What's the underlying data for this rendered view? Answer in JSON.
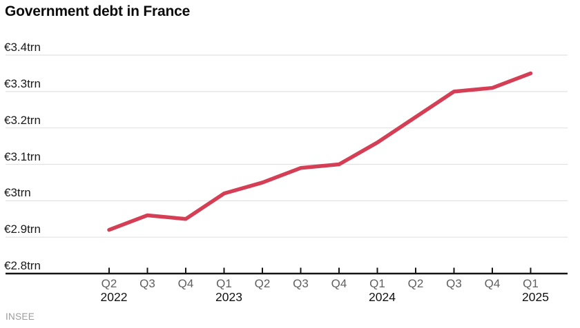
{
  "chart_data": {
    "type": "line",
    "title": "Government debt in France",
    "source": "INSEE",
    "unit": "€trn",
    "categories": [
      "Q2 2022",
      "Q3 2022",
      "Q4 2022",
      "Q1 2023",
      "Q2 2023",
      "Q3 2023",
      "Q4 2023",
      "Q1 2024",
      "Q2 2024",
      "Q3 2024",
      "Q4 2024",
      "Q1 2025"
    ],
    "values": [
      2.92,
      2.96,
      2.95,
      3.02,
      3.05,
      3.09,
      3.1,
      3.16,
      3.23,
      3.3,
      3.31,
      3.35
    ],
    "ylim": [
      2.8,
      3.4
    ],
    "grid": "horizontal-only",
    "legend": "none",
    "y_ticks": [
      {
        "label": "€3.4trn",
        "value": 3.4
      },
      {
        "label": "€3.3trn",
        "value": 3.3
      },
      {
        "label": "€3.2trn",
        "value": 3.2
      },
      {
        "label": "€3.1trn",
        "value": 3.1
      },
      {
        "label": "€3trn",
        "value": 3.0
      },
      {
        "label": "€2.9trn",
        "value": 2.9
      },
      {
        "label": "€2.8trn",
        "value": 2.8
      }
    ],
    "x_ticks": [
      {
        "quarter": "Q2",
        "year": "2022"
      },
      {
        "quarter": "Q3"
      },
      {
        "quarter": "Q4"
      },
      {
        "quarter": "Q1",
        "year": "2023"
      },
      {
        "quarter": "Q2"
      },
      {
        "quarter": "Q3"
      },
      {
        "quarter": "Q4"
      },
      {
        "quarter": "Q1",
        "year": "2024"
      },
      {
        "quarter": "Q2"
      },
      {
        "quarter": "Q3"
      },
      {
        "quarter": "Q4"
      },
      {
        "quarter": "Q1",
        "year": "2025"
      }
    ],
    "colors": {
      "line": "#d53f56",
      "grid": "#e2e2e2",
      "axis": "#141414",
      "tick": "#141414",
      "quarter_label": "#5f5f5f",
      "year_label": "#111111",
      "y_label": "#1a1a1a",
      "title": "#0b0b0b",
      "source": "#9b9b9b",
      "background": "#ffffff"
    }
  }
}
